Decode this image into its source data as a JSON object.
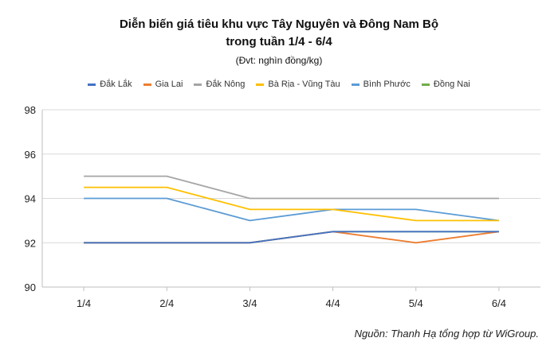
{
  "title_line1": "Diễn biến giá tiêu khu vực Tây Nguyên và Đông Nam Bộ",
  "title_line2": "trong tuần 1/4 - 6/4",
  "subtitle": "(Đvt: nghìn đồng/kg)",
  "source": "Nguồn: Thanh Hạ tổng hợp từ WiGroup.",
  "chart_data": {
    "type": "line",
    "title": "Diễn biến giá tiêu khu vực Tây Nguyên và Đông Nam Bộ trong tuần 1/4 - 6/4",
    "xlabel": "",
    "ylabel": "",
    "categories": [
      "1/4",
      "2/4",
      "3/4",
      "4/4",
      "5/4",
      "6/4"
    ],
    "ylim": [
      90,
      98
    ],
    "yticks": [
      90,
      92,
      94,
      96,
      98
    ],
    "grid": "horizontal",
    "legend": "top",
    "series": [
      {
        "name": "Đắk Lắk",
        "color": "#4472C4",
        "values": [
          92,
          92,
          92,
          92.5,
          92.5,
          92.5
        ]
      },
      {
        "name": "Gia Lai",
        "color": "#ED7D31",
        "values": [
          92,
          92,
          92,
          92.5,
          92,
          92.5
        ]
      },
      {
        "name": "Đắk Nông",
        "color": "#A5A5A5",
        "values": [
          95,
          95,
          94,
          94,
          94,
          94
        ]
      },
      {
        "name": "Bà Rịa - Vũng Tàu",
        "color": "#FFC000",
        "values": [
          94.5,
          94.5,
          93.5,
          93.5,
          93,
          93
        ]
      },
      {
        "name": "Bình Phước",
        "color": "#5B9BD5",
        "values": [
          94,
          94,
          93,
          93.5,
          93.5,
          93
        ]
      },
      {
        "name": "Đồng Nai",
        "color": "#70AD47",
        "values": [
          92,
          92,
          92,
          92.5,
          92.5,
          92.5
        ]
      }
    ]
  }
}
